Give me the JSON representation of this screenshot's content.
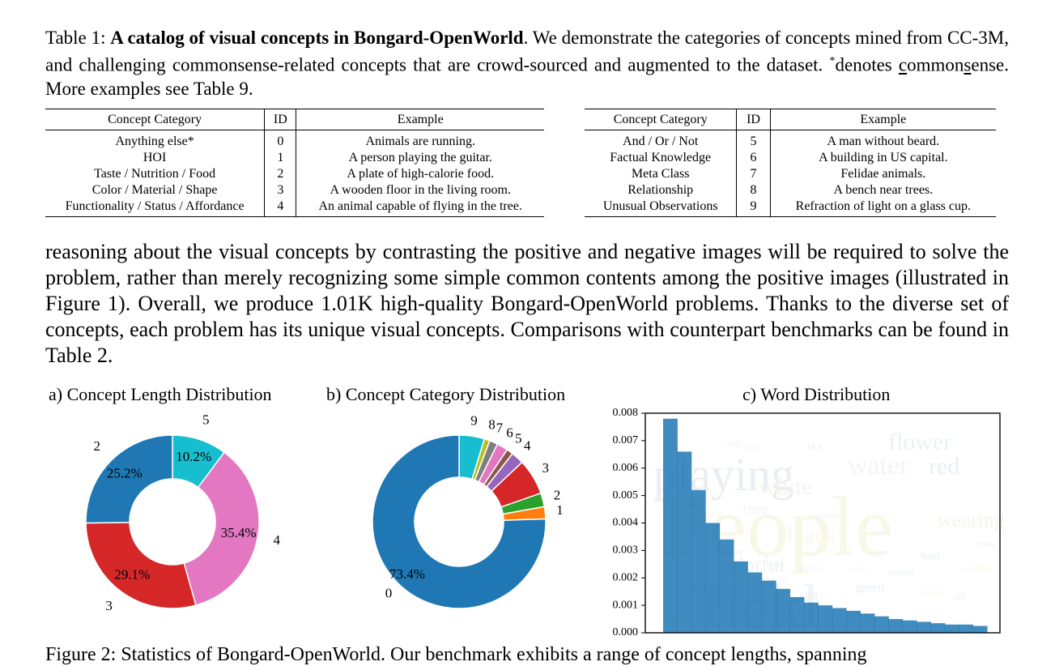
{
  "table_caption": {
    "label": "Table 1:",
    "title": "A catalog of visual concepts in Bongard-OpenWorld",
    "text_a": ". We demonstrate the categories of concepts mined from CC-3M, and challenging commonsense-related concepts that are crowd-sourced and augmented to the dataset. ",
    "star": "*",
    "text_b": "denotes ",
    "c1": "c",
    "mid": "ommon",
    "s1": "s",
    "end": "ense. More examples see Table 9."
  },
  "table": {
    "headers": [
      "Concept Category",
      "ID",
      "Example"
    ],
    "left": [
      {
        "category": "Anything else*",
        "id": "0",
        "example": "Animals are running."
      },
      {
        "category": "HOI",
        "id": "1",
        "example": "A person playing the guitar."
      },
      {
        "category": "Taste / Nutrition / Food",
        "id": "2",
        "example": "A plate of high-calorie food."
      },
      {
        "category": "Color / Material / Shape",
        "id": "3",
        "example": "A wooden floor in the living room."
      },
      {
        "category": "Functionality / Status / Affordance",
        "id": "4",
        "example": "An animal capable of flying in the tree."
      }
    ],
    "right": [
      {
        "category": "And / Or / Not",
        "id": "5",
        "example": "A man without beard."
      },
      {
        "category": "Factual Knowledge",
        "id": "6",
        "example": "A building in US capital."
      },
      {
        "category": "Meta Class",
        "id": "7",
        "example": "Felidae animals."
      },
      {
        "category": "Relationship",
        "id": "8",
        "example": "A bench near trees."
      },
      {
        "category": "Unusual Observations",
        "id": "9",
        "example": "Refraction of light on a glass cup."
      }
    ]
  },
  "body_text": "reasoning about the visual concepts by contrasting the positive and negative images will be required to solve the problem, rather than merely recognizing some simple common contents among the positive images (illustrated in Figure 1). Overall, we produce 1.01K high-quality Bongard-OpenWorld problems. Thanks to the diverse set of concepts, each problem has its unique visual concepts. Comparisons with counterpart benchmarks can be found in Table 2.",
  "figure_cut_text": "Figure 2: Statistics of Bongard-OpenWorld. Our benchmark exhibits a range of concept lengths, spanning",
  "chart_data": [
    {
      "type": "pie",
      "title": "a) Concept Length Distribution",
      "slices": [
        {
          "label": "5",
          "value": 10.2,
          "pct_text": "10.2%",
          "color": "#17becf"
        },
        {
          "label": "4",
          "value": 35.4,
          "pct_text": "35.4%",
          "color": "#e377c2"
        },
        {
          "label": "3",
          "value": 29.1,
          "pct_text": "29.1%",
          "color": "#d62728"
        },
        {
          "label": "2",
          "value": 25.2,
          "pct_text": "25.2%",
          "color": "#1f77b4"
        }
      ]
    },
    {
      "type": "pie",
      "title": "b) Concept Category Distribution",
      "slices": [
        {
          "label": "9",
          "value": 4.6,
          "color": "#17becf"
        },
        {
          "label": "8",
          "value": 1.0,
          "color": "#bcbd22"
        },
        {
          "label": "7",
          "value": 1.5,
          "color": "#7f7f7f"
        },
        {
          "label": "6",
          "value": 2.0,
          "color": "#e377c2"
        },
        {
          "label": "5",
          "value": 1.2,
          "color": "#8c564b"
        },
        {
          "label": "4",
          "value": 2.3,
          "color": "#9467bd"
        },
        {
          "label": "3",
          "value": 6.5,
          "color": "#d62728"
        },
        {
          "label": "2",
          "value": 2.5,
          "color": "#2ca02c"
        },
        {
          "label": "1",
          "value": 2.2,
          "color": "#ff7f0e"
        },
        {
          "label": "0",
          "value": 73.4,
          "pct_text": "73.4%",
          "color": "#1f77b4"
        }
      ]
    },
    {
      "type": "bar",
      "title": "c) Word Distribution",
      "ylim": [
        0,
        0.008
      ],
      "yticks": [
        "0.000",
        "0.001",
        "0.002",
        "0.003",
        "0.004",
        "0.005",
        "0.006",
        "0.007",
        "0.008"
      ],
      "values": [
        0.0078,
        0.0066,
        0.0052,
        0.004,
        0.0034,
        0.0026,
        0.0022,
        0.0019,
        0.0016,
        0.0013,
        0.0011,
        0.001,
        0.0009,
        0.0008,
        0.0007,
        0.0006,
        0.0005,
        0.00045,
        0.0004,
        0.00035,
        0.0003,
        0.0003,
        0.00025
      ],
      "bar_color": "#1f77b4",
      "wordcloud": [
        "playing",
        "People",
        "field",
        "white",
        "water",
        "flower",
        "red",
        "black",
        "colorful",
        "wearing",
        "tree",
        "sea",
        "green",
        "woman",
        "car",
        "dog",
        "city",
        "sky",
        "river",
        "forest",
        "person",
        "kid",
        "large",
        "old",
        "pile",
        "snow",
        "photo",
        "animal",
        "group",
        "boat",
        "food",
        "view",
        "table",
        "bunch",
        "pattern",
        "light",
        "man",
        "ground",
        "grass"
      ]
    }
  ]
}
